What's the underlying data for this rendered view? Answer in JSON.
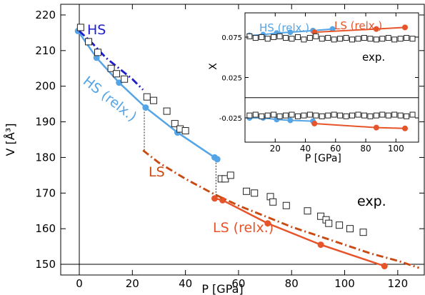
{
  "chart_data": [
    {
      "type": "line",
      "xlabel": "P [GPa]",
      "ylabel": "V [Å³]",
      "xlim": [
        -7,
        130
      ],
      "ylim": [
        147,
        223
      ],
      "xticks": [
        0,
        20,
        40,
        60,
        80,
        100,
        120
      ],
      "yticks": [
        150,
        160,
        170,
        180,
        190,
        200,
        210,
        220
      ],
      "reference_lines": {
        "x": 0,
        "y": 150
      },
      "colors": {
        "hs": "#55a4e6",
        "ls": "#e8542a",
        "hs_dashdot": "#1f1fcc",
        "ls_dashdot": "#c94a12",
        "exp": "#222222",
        "transition": "#222222"
      },
      "series": [
        {
          "name": "HS (relx.)",
          "style": "solid-line-markers",
          "color": "#55a4e6",
          "x": [
            -0.5,
            6.5,
            15,
            25,
            37,
            51,
            52
          ],
          "y": [
            215.5,
            208,
            201,
            194,
            187,
            180,
            179.5
          ]
        },
        {
          "name": "HS",
          "style": "dash-dot",
          "color": "#1f1fcc",
          "x": [
            0,
            5,
            10,
            15,
            20,
            24
          ],
          "y": [
            215.5,
            212,
            208,
            205,
            202,
            199
          ]
        },
        {
          "name": "LS (relx.)",
          "style": "solid-line-markers",
          "color": "#e8542a",
          "x": [
            51,
            54,
            71,
            91,
            115
          ],
          "y": [
            168.5,
            168,
            161.5,
            155.5,
            149.5
          ]
        },
        {
          "name": "LS",
          "style": "dash-dot",
          "color": "#c94a12",
          "x": [
            24,
            30,
            40,
            50,
            60,
            70,
            80,
            90,
            100,
            110,
            120,
            128
          ],
          "y": [
            182,
            178.5,
            174,
            170,
            166.5,
            163.5,
            160.5,
            158,
            155.5,
            153,
            151,
            149
          ]
        },
        {
          "name": "exp.",
          "style": "open-squares",
          "color": "#222222",
          "x": [
            0.5,
            3.5,
            7,
            12,
            14,
            17,
            25.5,
            28,
            33,
            36,
            38,
            40,
            53.5,
            55,
            57,
            63,
            66,
            72,
            73,
            78,
            86,
            91,
            93,
            94,
            98,
            102,
            107
          ],
          "y": [
            216.5,
            212.5,
            209.5,
            205,
            203.5,
            202,
            197,
            196,
            193,
            189.5,
            188,
            187.5,
            174,
            174,
            175,
            170.5,
            170,
            169,
            167.5,
            166.5,
            165,
            163.5,
            162.5,
            161.5,
            161,
            160,
            159
          ]
        }
      ],
      "transitions": [
        {
          "x": 24.5,
          "y_from": 182,
          "y_to": 194
        },
        {
          "x": 51.5,
          "y_from": 168.5,
          "y_to": 180
        }
      ],
      "annotations": [
        {
          "text": "HS",
          "color": "#1f1fcc"
        },
        {
          "text": "HS (relx.)",
          "color": "#55a4e6"
        },
        {
          "text": "LS",
          "color": "#c94a12"
        },
        {
          "text": "LS (relx.)",
          "color": "#e8542a"
        },
        {
          "text": "exp.",
          "color": "#000000"
        }
      ]
    },
    {
      "type": "line",
      "xlabel": "P [GPa]",
      "ylabel": "X",
      "xlim": [
        0,
        115
      ],
      "ylim": [
        -0.055,
        0.105
      ],
      "xticks": [
        20,
        40,
        60,
        80,
        100
      ],
      "yticks": [
        0.075,
        0.025,
        -0.025
      ],
      "reference_lines": {
        "y": 0
      },
      "series": [
        {
          "name": "HS (relx.) upper",
          "style": "solid-line-markers",
          "color": "#55a4e6",
          "x": [
            3,
            12,
            21,
            30,
            45,
            58
          ],
          "y": [
            0.077,
            0.078,
            0.08,
            0.081,
            0.083,
            0.085
          ]
        },
        {
          "name": "LS (relx.) upper",
          "style": "solid-line-markers",
          "color": "#e8542a",
          "x": [
            46,
            87,
            106
          ],
          "y": [
            0.081,
            0.085,
            0.087
          ]
        },
        {
          "name": "HS (relx.) lower",
          "style": "solid-line-markers",
          "color": "#55a4e6",
          "x": [
            3,
            12,
            21,
            30,
            45
          ],
          "y": [
            -0.025,
            -0.025,
            -0.027,
            -0.028,
            -0.029
          ]
        },
        {
          "name": "LS (relx.) lower",
          "style": "solid-line-markers",
          "color": "#e8542a",
          "x": [
            46,
            87,
            106
          ],
          "y": [
            -0.032,
            -0.037,
            -0.038
          ]
        },
        {
          "name": "exp. upper",
          "style": "open-squares",
          "color": "#222222",
          "x": [
            3,
            7,
            11,
            15,
            19,
            23,
            27,
            31,
            35,
            39,
            43,
            47,
            51,
            55,
            59,
            63,
            67,
            71,
            75,
            79,
            83,
            87,
            91,
            95,
            99,
            103,
            107,
            111
          ],
          "y": [
            0.076,
            0.074,
            0.075,
            0.073,
            0.075,
            0.076,
            0.074,
            0.073,
            0.075,
            0.072,
            0.074,
            0.076,
            0.073,
            0.074,
            0.072,
            0.073,
            0.074,
            0.072,
            0.073,
            0.074,
            0.073,
            0.072,
            0.073,
            0.074,
            0.072,
            0.073,
            0.074,
            0.073
          ]
        },
        {
          "name": "exp. lower",
          "style": "open-squares",
          "color": "#222222",
          "x": [
            3,
            7,
            11,
            15,
            19,
            23,
            27,
            31,
            35,
            39,
            43,
            47,
            51,
            55,
            59,
            63,
            67,
            71,
            75,
            79,
            83,
            87,
            91,
            95,
            99,
            103,
            107,
            111
          ],
          "y": [
            -0.022,
            -0.021,
            -0.023,
            -0.022,
            -0.021,
            -0.023,
            -0.022,
            -0.021,
            -0.023,
            -0.022,
            -0.021,
            -0.022,
            -0.023,
            -0.022,
            -0.021,
            -0.022,
            -0.023,
            -0.022,
            -0.021,
            -0.022,
            -0.023,
            -0.022,
            -0.021,
            -0.022,
            -0.021,
            -0.022,
            -0.023,
            -0.021
          ]
        }
      ],
      "annotations": [
        {
          "text": "HS (relx.)",
          "color": "#55a4e6"
        },
        {
          "text": "LS (relx.)",
          "color": "#e8542a"
        },
        {
          "text": "exp.",
          "color": "#000000"
        }
      ]
    }
  ]
}
